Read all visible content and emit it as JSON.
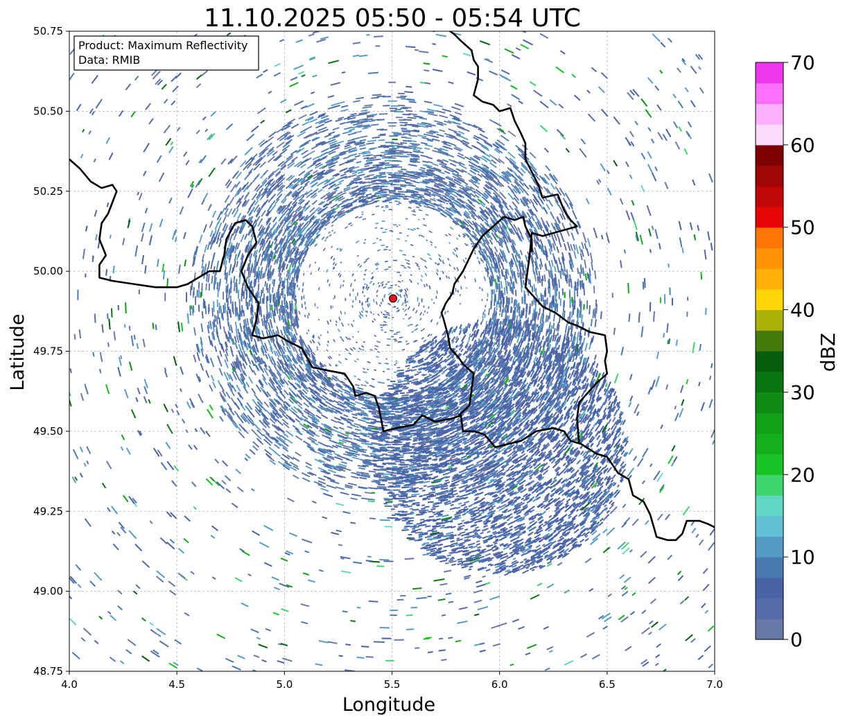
{
  "title": "11.10.2025 05:50 - 05:54 UTC",
  "info_box": {
    "product_line": "Product: Maximum Reflectivity",
    "data_line": "Data: RMIB"
  },
  "axes": {
    "xlabel": "Longitude",
    "ylabel": "Latitude",
    "xlim": [
      4.0,
      7.0
    ],
    "ylim": [
      48.75,
      50.75
    ],
    "x_ticks": [
      "4.0",
      "4.5",
      "5.0",
      "5.5",
      "6.0",
      "6.5",
      "7.0"
    ],
    "y_ticks": [
      "48.75",
      "49.00",
      "49.25",
      "49.50",
      "49.75",
      "50.00",
      "50.25",
      "50.50",
      "50.75"
    ],
    "grid": true
  },
  "radar_site": {
    "lon": 5.505,
    "lat": 49.915,
    "color": "#e8111a"
  },
  "colorbar": {
    "label": "dBZ",
    "range": [
      0,
      70
    ],
    "ticks": [
      "0",
      "10",
      "20",
      "30",
      "40",
      "50",
      "60",
      "70"
    ],
    "colors": [
      "#6778a8",
      "#566ca6",
      "#4a63a6",
      "#4a7ab0",
      "#559cc4",
      "#62c0d6",
      "#62d8c4",
      "#3ed46e",
      "#16c424",
      "#14b01c",
      "#12a018",
      "#0e8c14",
      "#0a7612",
      "#065e0e",
      "#457a0c",
      "#aab006",
      "#fed606",
      "#feb006",
      "#fe9406",
      "#fe7606",
      "#e60606",
      "#c00606",
      "#a00606",
      "#7e0202",
      "#fedcfe",
      "#fcb0fc",
      "#fc70fc",
      "#ee36ee"
    ]
  },
  "chart_data": {
    "type": "heatmap",
    "title": "11.10.2025 05:50 - 05:54 UTC",
    "xlabel": "Longitude",
    "ylabel": "Latitude",
    "xlim": [
      4.0,
      7.0
    ],
    "ylim": [
      48.75,
      50.75
    ],
    "value_label": "dBZ",
    "value_range": [
      0,
      70
    ],
    "radar_center": {
      "lon": 5.505,
      "lat": 49.915
    },
    "clear_inner_zone_radius_deg": 0.45,
    "main_echo_ring_radius_deg": [
      0.45,
      0.95
    ],
    "dense_echo_area": {
      "lon": 6.0,
      "lat": 49.45
    },
    "borders": [
      [
        [
          4.0,
          50.35
        ],
        [
          4.05,
          50.32
        ],
        [
          4.1,
          50.28
        ],
        [
          4.15,
          50.26
        ],
        [
          4.2,
          50.27
        ],
        [
          4.22,
          50.25
        ],
        [
          4.18,
          50.18
        ],
        [
          4.15,
          50.15
        ],
        [
          4.14,
          50.1
        ],
        [
          4.17,
          50.05
        ],
        [
          4.14,
          50.02
        ],
        [
          4.14,
          49.98
        ],
        [
          4.2,
          49.97
        ],
        [
          4.3,
          49.96
        ],
        [
          4.4,
          49.95
        ],
        [
          4.5,
          49.95
        ],
        [
          4.55,
          49.96
        ],
        [
          4.6,
          49.98
        ],
        [
          4.65,
          50.0
        ],
        [
          4.7,
          50.0
        ],
        [
          4.72,
          50.05
        ],
        [
          4.73,
          50.1
        ],
        [
          4.77,
          50.15
        ],
        [
          4.82,
          50.16
        ],
        [
          4.85,
          50.14
        ],
        [
          4.87,
          50.09
        ],
        [
          4.83,
          50.05
        ],
        [
          4.8,
          50.0
        ],
        [
          4.83,
          49.95
        ],
        [
          4.88,
          49.9
        ],
        [
          4.87,
          49.85
        ],
        [
          4.85,
          49.8
        ],
        [
          4.9,
          49.79
        ],
        [
          4.97,
          49.8
        ],
        [
          5.02,
          49.78
        ],
        [
          5.08,
          49.76
        ],
        [
          5.13,
          49.7
        ],
        [
          5.2,
          49.69
        ],
        [
          5.28,
          49.68
        ],
        [
          5.32,
          49.64
        ],
        [
          5.33,
          49.61
        ],
        [
          5.38,
          49.62
        ],
        [
          5.42,
          49.61
        ],
        [
          5.44,
          49.57
        ],
        [
          5.46,
          49.5
        ],
        [
          5.52,
          49.51
        ],
        [
          5.6,
          49.52
        ],
        [
          5.64,
          49.55
        ],
        [
          5.7,
          49.53
        ],
        [
          5.78,
          49.54
        ],
        [
          5.82,
          49.55
        ],
        [
          5.83,
          49.5
        ],
        [
          5.88,
          49.5
        ],
        [
          5.93,
          49.49
        ],
        [
          5.98,
          49.45
        ],
        [
          6.04,
          49.46
        ],
        [
          6.1,
          49.47
        ],
        [
          6.17,
          49.5
        ],
        [
          6.25,
          49.51
        ],
        [
          6.3,
          49.5
        ],
        [
          6.33,
          49.47
        ],
        [
          6.38,
          49.46
        ],
        [
          6.45,
          49.43
        ],
        [
          6.5,
          49.42
        ],
        [
          6.55,
          49.37
        ],
        [
          6.6,
          49.35
        ],
        [
          6.62,
          49.3
        ],
        [
          6.67,
          49.28
        ],
        [
          6.7,
          49.24
        ],
        [
          6.73,
          49.17
        ],
        [
          6.78,
          49.16
        ],
        [
          6.82,
          49.16
        ],
        [
          6.85,
          49.18
        ],
        [
          6.87,
          49.22
        ],
        [
          6.93,
          49.22
        ],
        [
          6.97,
          49.21
        ],
        [
          7.0,
          49.2
        ]
      ],
      [
        [
          5.69,
          50.75
        ],
        [
          5.75,
          50.76
        ],
        [
          5.79,
          50.74
        ],
        [
          5.82,
          50.72
        ],
        [
          5.87,
          50.69
        ],
        [
          5.88,
          50.66
        ],
        [
          5.9,
          50.64
        ],
        [
          5.9,
          50.6
        ],
        [
          5.88,
          50.55
        ],
        [
          5.92,
          50.53
        ],
        [
          5.97,
          50.52
        ],
        [
          6.0,
          50.5
        ],
        [
          6.05,
          50.51
        ],
        [
          6.07,
          50.47
        ],
        [
          6.1,
          50.43
        ],
        [
          6.12,
          50.4
        ],
        [
          6.12,
          50.35
        ],
        [
          6.15,
          50.31
        ],
        [
          6.18,
          50.27
        ],
        [
          6.2,
          50.23
        ],
        [
          6.27,
          50.24
        ],
        [
          6.3,
          50.19
        ],
        [
          6.33,
          50.16
        ],
        [
          6.36,
          50.14
        ],
        [
          6.2,
          50.11
        ],
        [
          6.15,
          50.12
        ],
        [
          6.14,
          50.05
        ],
        [
          6.13,
          50.0
        ],
        [
          6.12,
          49.95
        ],
        [
          6.16,
          49.92
        ],
        [
          6.2,
          49.89
        ],
        [
          6.26,
          49.87
        ],
        [
          6.32,
          49.84
        ],
        [
          6.36,
          49.83
        ],
        [
          6.42,
          49.81
        ],
        [
          6.49,
          49.8
        ],
        [
          6.5,
          49.75
        ],
        [
          6.49,
          49.72
        ],
        [
          6.5,
          49.68
        ],
        [
          6.45,
          49.65
        ],
        [
          6.41,
          49.62
        ],
        [
          6.37,
          49.59
        ],
        [
          6.36,
          49.54
        ],
        [
          6.37,
          49.46
        ]
      ],
      [
        [
          5.81,
          49.55
        ],
        [
          5.86,
          49.58
        ],
        [
          5.87,
          49.63
        ],
        [
          5.88,
          49.68
        ],
        [
          5.83,
          49.71
        ],
        [
          5.81,
          49.73
        ],
        [
          5.77,
          49.76
        ],
        [
          5.76,
          49.8
        ],
        [
          5.74,
          49.85
        ],
        [
          5.73,
          49.87
        ],
        [
          5.75,
          49.9
        ],
        [
          5.78,
          49.93
        ],
        [
          5.79,
          49.96
        ],
        [
          5.83,
          50.0
        ],
        [
          5.88,
          50.07
        ],
        [
          5.92,
          50.11
        ],
        [
          5.97,
          50.14
        ],
        [
          6.02,
          50.17
        ],
        [
          6.07,
          50.16
        ],
        [
          6.11,
          50.17
        ],
        [
          6.12,
          50.14
        ],
        [
          6.15,
          50.1
        ],
        [
          6.15,
          50.06
        ]
      ]
    ]
  }
}
